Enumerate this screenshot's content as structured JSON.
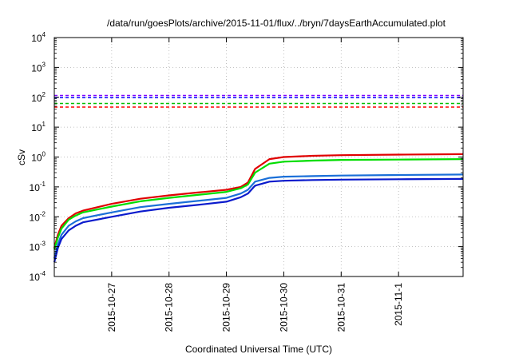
{
  "chart_data": {
    "type": "line",
    "title": "/data/run/goesPlots/archive/2015-11-01/flux/../bryn/7daysEarthAccumulated.plot",
    "xlabel": "Coordinated Universal Time (UTC)",
    "ylabel": "cSv",
    "y_scale": "log",
    "ylim": [
      0.0001,
      10000
    ],
    "xlim": [
      "2015-10-26 00:00",
      "2015-11-02 03:00"
    ],
    "grid": true,
    "legend": "none",
    "x_ticks": [
      {
        "label": "2015-10-27",
        "value": "2015-10-27 00:00"
      },
      {
        "label": "2015-10-28",
        "value": "2015-10-28 00:00"
      },
      {
        "label": "2015-10-29",
        "value": "2015-10-29 00:00"
      },
      {
        "label": "2015-10-30",
        "value": "2015-10-30 00:00"
      },
      {
        "label": "2015-10-31",
        "value": "2015-10-31 00:00"
      },
      {
        "label": "2015-11-1",
        "value": "2015-11-01 00:00"
      }
    ],
    "y_ticks": [
      {
        "base": "10",
        "exp": "-4",
        "value": 0.0001
      },
      {
        "base": "10",
        "exp": "-3",
        "value": 0.001
      },
      {
        "base": "10",
        "exp": "-2",
        "value": 0.01
      },
      {
        "base": "10",
        "exp": "-1",
        "value": 0.1
      },
      {
        "base": "10",
        "exp": "0",
        "value": 1
      },
      {
        "base": "10",
        "exp": "1",
        "value": 10
      },
      {
        "base": "10",
        "exp": "2",
        "value": 100
      },
      {
        "base": "10",
        "exp": "3",
        "value": 1000
      },
      {
        "base": "10",
        "exp": "4",
        "value": 10000
      }
    ],
    "reference_lines": [
      {
        "color": "#7f00ff",
        "value": 115,
        "style": "dashed"
      },
      {
        "color": "#0000ff",
        "value": 98,
        "style": "dashed"
      },
      {
        "color": "#00c000",
        "value": 62,
        "style": "dashed"
      },
      {
        "color": "#ff0000",
        "value": 47,
        "style": "dashed"
      }
    ],
    "series": [
      {
        "color": "#e00000",
        "x": [
          "2015-10-26 00:00",
          "2015-10-26 01:30",
          "2015-10-26 03:00",
          "2015-10-26 06:00",
          "2015-10-26 09:00",
          "2015-10-26 12:00",
          "2015-10-27 00:00",
          "2015-10-27 12:00",
          "2015-10-28 00:00",
          "2015-10-28 12:00",
          "2015-10-29 00:00",
          "2015-10-29 06:00",
          "2015-10-29 09:00",
          "2015-10-29 12:00",
          "2015-10-29 18:00",
          "2015-10-30 00:00",
          "2015-10-30 12:00",
          "2015-10-31 00:00",
          "2015-11-01 00:00",
          "2015-11-02 03:00"
        ],
        "values": [
          0.0009,
          0.0025,
          0.005,
          0.009,
          0.013,
          0.016,
          0.027,
          0.04,
          0.052,
          0.065,
          0.08,
          0.1,
          0.14,
          0.4,
          0.85,
          1.0,
          1.1,
          1.15,
          1.2,
          1.25
        ]
      },
      {
        "color": "#00dd00",
        "x": [
          "2015-10-26 00:00",
          "2015-10-26 01:30",
          "2015-10-26 03:00",
          "2015-10-26 06:00",
          "2015-10-26 09:00",
          "2015-10-26 12:00",
          "2015-10-27 00:00",
          "2015-10-27 12:00",
          "2015-10-28 00:00",
          "2015-10-28 12:00",
          "2015-10-29 00:00",
          "2015-10-29 06:00",
          "2015-10-29 09:00",
          "2015-10-29 12:00",
          "2015-10-29 18:00",
          "2015-10-30 00:00",
          "2015-10-30 12:00",
          "2015-10-31 00:00",
          "2015-11-01 00:00",
          "2015-11-02 03:00"
        ],
        "values": [
          0.0008,
          0.002,
          0.004,
          0.008,
          0.011,
          0.014,
          0.022,
          0.033,
          0.043,
          0.054,
          0.068,
          0.09,
          0.12,
          0.3,
          0.6,
          0.7,
          0.76,
          0.8,
          0.82,
          0.85
        ]
      },
      {
        "color": "#1a6fd8",
        "x": [
          "2015-10-26 00:00",
          "2015-10-26 01:30",
          "2015-10-26 03:00",
          "2015-10-26 06:00",
          "2015-10-26 09:00",
          "2015-10-26 12:00",
          "2015-10-27 00:00",
          "2015-10-27 12:00",
          "2015-10-28 00:00",
          "2015-10-28 12:00",
          "2015-10-29 00:00",
          "2015-10-29 06:00",
          "2015-10-29 09:00",
          "2015-10-29 12:00",
          "2015-10-29 18:00",
          "2015-10-30 00:00",
          "2015-10-30 12:00",
          "2015-10-31 00:00",
          "2015-11-01 00:00",
          "2015-11-02 03:00"
        ],
        "values": [
          0.0004,
          0.0012,
          0.0025,
          0.005,
          0.007,
          0.009,
          0.014,
          0.021,
          0.027,
          0.034,
          0.043,
          0.06,
          0.08,
          0.15,
          0.2,
          0.22,
          0.23,
          0.24,
          0.25,
          0.26
        ]
      },
      {
        "color": "#0a1acc",
        "x": [
          "2015-10-26 00:00",
          "2015-10-26 01:30",
          "2015-10-26 03:00",
          "2015-10-26 06:00",
          "2015-10-26 09:00",
          "2015-10-26 12:00",
          "2015-10-27 00:00",
          "2015-10-27 12:00",
          "2015-10-28 00:00",
          "2015-10-28 12:00",
          "2015-10-29 00:00",
          "2015-10-29 06:00",
          "2015-10-29 09:00",
          "2015-10-29 12:00",
          "2015-10-29 18:00",
          "2015-10-30 00:00",
          "2015-10-30 12:00",
          "2015-10-31 00:00",
          "2015-11-01 00:00",
          "2015-11-02 03:00"
        ],
        "values": [
          0.0003,
          0.0009,
          0.0018,
          0.0035,
          0.005,
          0.0065,
          0.01,
          0.015,
          0.02,
          0.025,
          0.032,
          0.045,
          0.06,
          0.11,
          0.15,
          0.16,
          0.17,
          0.175,
          0.18,
          0.185
        ]
      }
    ]
  }
}
